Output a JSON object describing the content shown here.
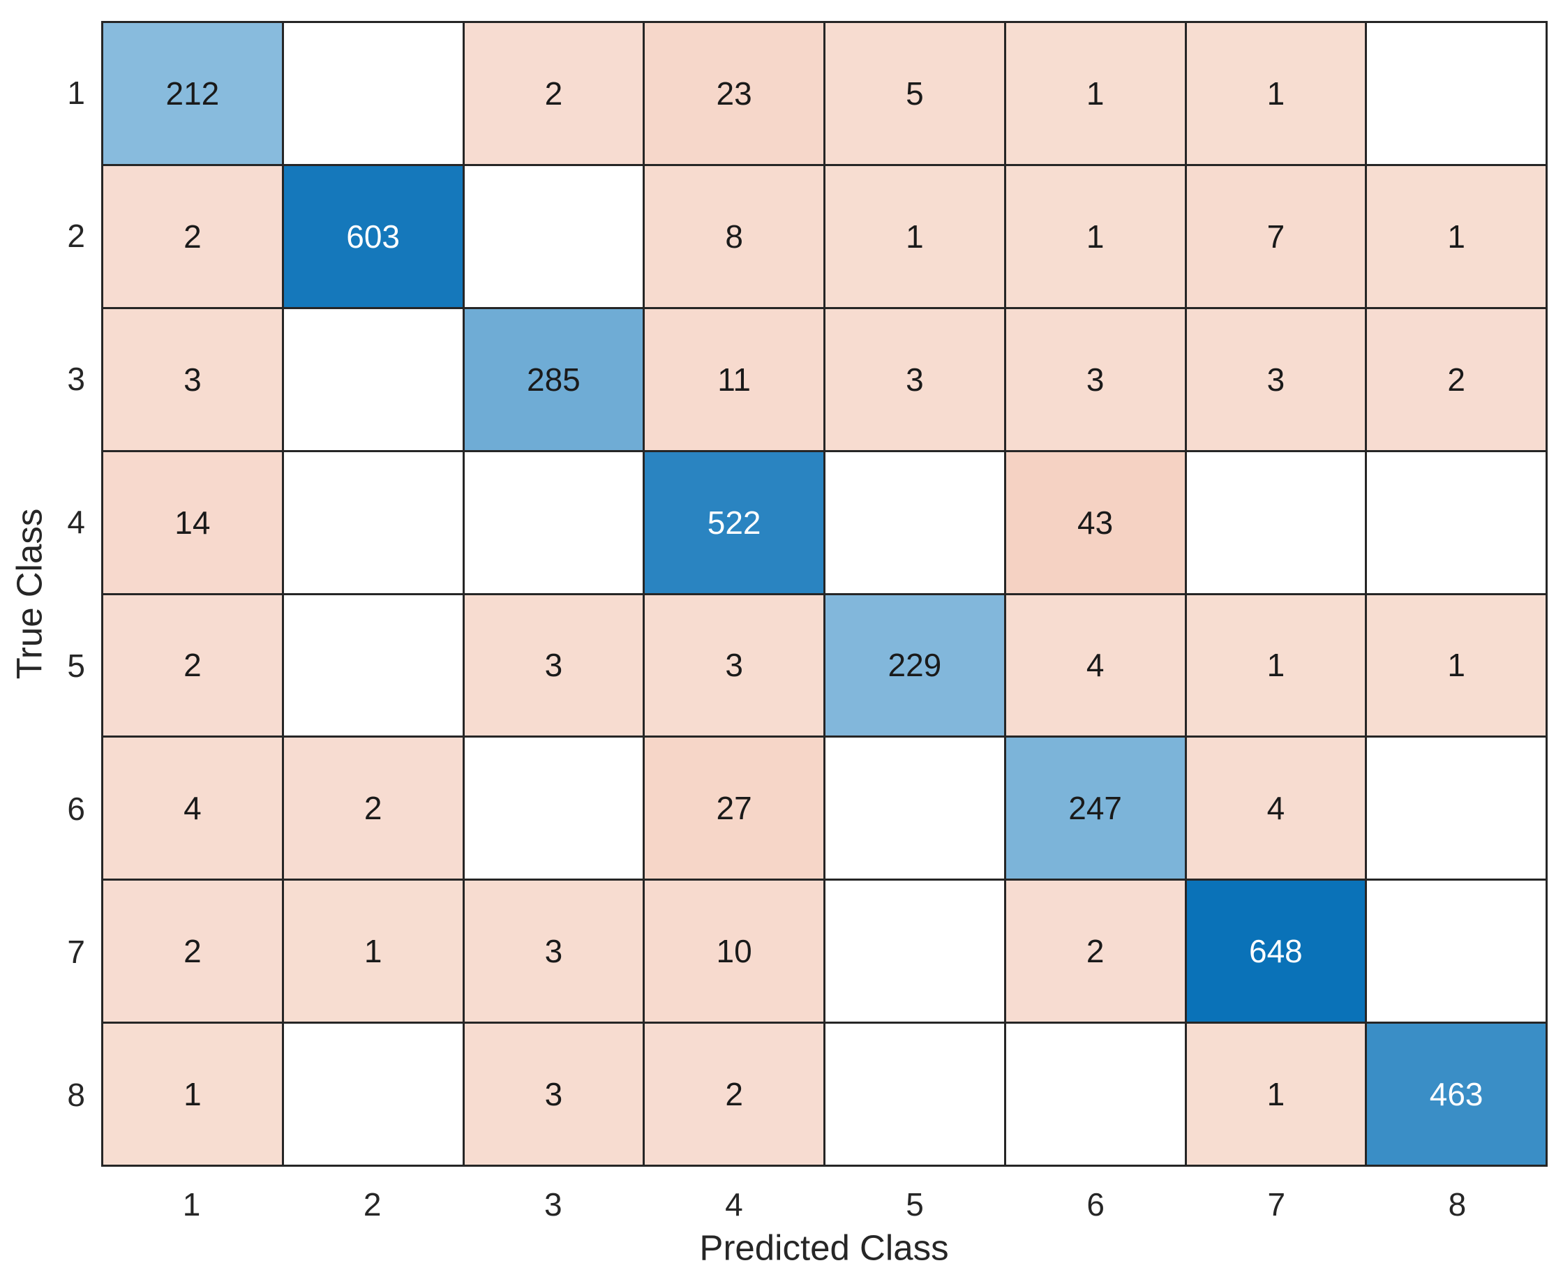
{
  "chart_data": {
    "type": "heatmap",
    "subtype": "confusion-matrix",
    "title": "",
    "xlabel": "Predicted Class",
    "ylabel": "True Class",
    "classes": [
      "1",
      "2",
      "3",
      "4",
      "5",
      "6",
      "7",
      "8"
    ],
    "matrix": [
      [
        212,
        0,
        2,
        23,
        5,
        1,
        1,
        0
      ],
      [
        2,
        603,
        0,
        8,
        1,
        1,
        7,
        1
      ],
      [
        3,
        0,
        285,
        11,
        3,
        3,
        3,
        2
      ],
      [
        14,
        0,
        0,
        522,
        0,
        43,
        0,
        0
      ],
      [
        2,
        0,
        3,
        3,
        229,
        4,
        1,
        1
      ],
      [
        4,
        2,
        0,
        27,
        0,
        247,
        4,
        0
      ],
      [
        2,
        1,
        3,
        10,
        0,
        2,
        648,
        0
      ],
      [
        1,
        0,
        3,
        2,
        0,
        0,
        1,
        463
      ]
    ],
    "legend": "none",
    "grid": "on",
    "layout_hints": {
      "diagonal_max": 648,
      "off_diagonal_max": 43,
      "zero_cells_blank": true
    },
    "colors": {
      "diagonal_base": "#0A72B8",
      "off_diagonal_base": "#D95319",
      "zero_cell": "#FFFFFF",
      "grid_line": "#262626",
      "cell_text_dark": "#1a1a1a",
      "cell_text_light": "#FFFFFF",
      "axis_text": "#262626"
    }
  }
}
